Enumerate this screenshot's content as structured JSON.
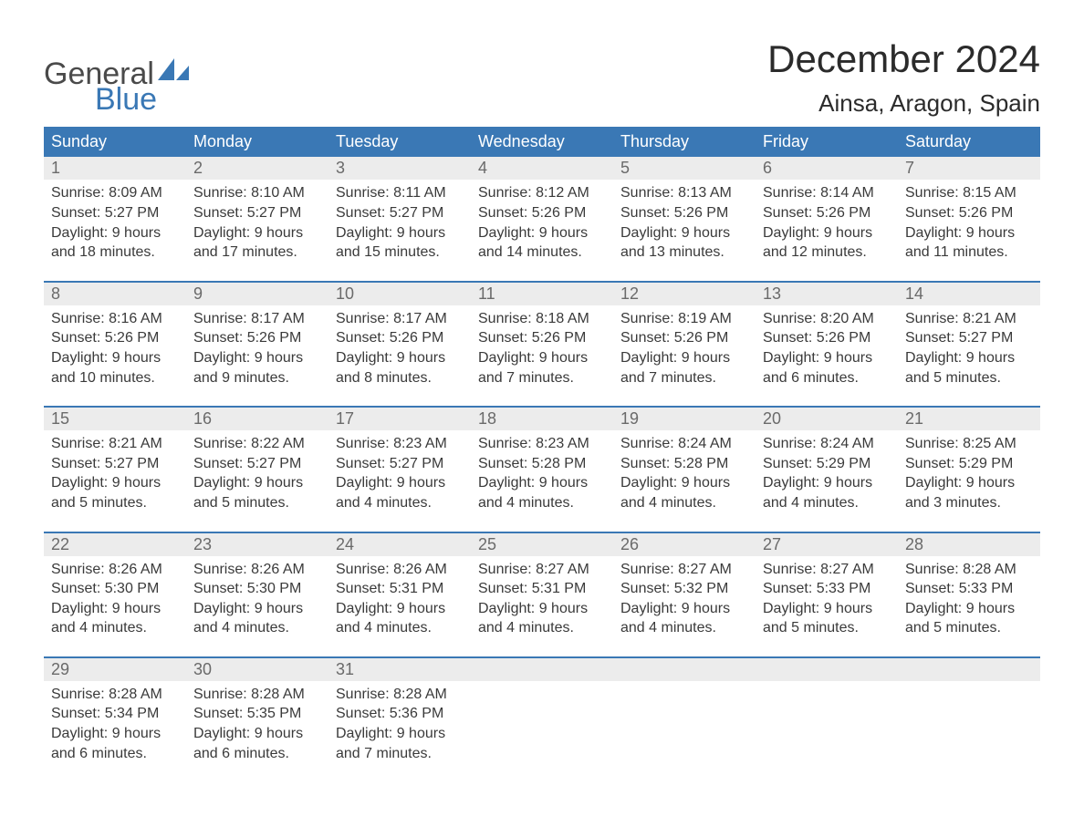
{
  "brand": {
    "word1": "General",
    "word2": "Blue",
    "text_color_word1": "#4a4a4a",
    "text_color_word2": "#3a78b5",
    "icon_color": "#3a78b5"
  },
  "header": {
    "month_title": "December 2024",
    "location": "Ainsa, Aragon, Spain"
  },
  "colors": {
    "header_bg": "#3a78b5",
    "header_text": "#ffffff",
    "daynum_bg": "#ececec",
    "daynum_text": "#6a6a6a",
    "body_text": "#3a3a3a",
    "week_border": "#3a78b5",
    "page_bg": "#ffffff"
  },
  "typography": {
    "month_title_fontsize": 42,
    "location_fontsize": 26,
    "weekday_fontsize": 18,
    "daynum_fontsize": 18,
    "body_fontsize": 16
  },
  "weekdays": [
    "Sunday",
    "Monday",
    "Tuesday",
    "Wednesday",
    "Thursday",
    "Friday",
    "Saturday"
  ],
  "weeks": [
    [
      {
        "num": "1",
        "sunrise": "Sunrise: 8:09 AM",
        "sunset": "Sunset: 5:27 PM",
        "daylight1": "Daylight: 9 hours",
        "daylight2": "and 18 minutes."
      },
      {
        "num": "2",
        "sunrise": "Sunrise: 8:10 AM",
        "sunset": "Sunset: 5:27 PM",
        "daylight1": "Daylight: 9 hours",
        "daylight2": "and 17 minutes."
      },
      {
        "num": "3",
        "sunrise": "Sunrise: 8:11 AM",
        "sunset": "Sunset: 5:27 PM",
        "daylight1": "Daylight: 9 hours",
        "daylight2": "and 15 minutes."
      },
      {
        "num": "4",
        "sunrise": "Sunrise: 8:12 AM",
        "sunset": "Sunset: 5:26 PM",
        "daylight1": "Daylight: 9 hours",
        "daylight2": "and 14 minutes."
      },
      {
        "num": "5",
        "sunrise": "Sunrise: 8:13 AM",
        "sunset": "Sunset: 5:26 PM",
        "daylight1": "Daylight: 9 hours",
        "daylight2": "and 13 minutes."
      },
      {
        "num": "6",
        "sunrise": "Sunrise: 8:14 AM",
        "sunset": "Sunset: 5:26 PM",
        "daylight1": "Daylight: 9 hours",
        "daylight2": "and 12 minutes."
      },
      {
        "num": "7",
        "sunrise": "Sunrise: 8:15 AM",
        "sunset": "Sunset: 5:26 PM",
        "daylight1": "Daylight: 9 hours",
        "daylight2": "and 11 minutes."
      }
    ],
    [
      {
        "num": "8",
        "sunrise": "Sunrise: 8:16 AM",
        "sunset": "Sunset: 5:26 PM",
        "daylight1": "Daylight: 9 hours",
        "daylight2": "and 10 minutes."
      },
      {
        "num": "9",
        "sunrise": "Sunrise: 8:17 AM",
        "sunset": "Sunset: 5:26 PM",
        "daylight1": "Daylight: 9 hours",
        "daylight2": "and 9 minutes."
      },
      {
        "num": "10",
        "sunrise": "Sunrise: 8:17 AM",
        "sunset": "Sunset: 5:26 PM",
        "daylight1": "Daylight: 9 hours",
        "daylight2": "and 8 minutes."
      },
      {
        "num": "11",
        "sunrise": "Sunrise: 8:18 AM",
        "sunset": "Sunset: 5:26 PM",
        "daylight1": "Daylight: 9 hours",
        "daylight2": "and 7 minutes."
      },
      {
        "num": "12",
        "sunrise": "Sunrise: 8:19 AM",
        "sunset": "Sunset: 5:26 PM",
        "daylight1": "Daylight: 9 hours",
        "daylight2": "and 7 minutes."
      },
      {
        "num": "13",
        "sunrise": "Sunrise: 8:20 AM",
        "sunset": "Sunset: 5:26 PM",
        "daylight1": "Daylight: 9 hours",
        "daylight2": "and 6 minutes."
      },
      {
        "num": "14",
        "sunrise": "Sunrise: 8:21 AM",
        "sunset": "Sunset: 5:27 PM",
        "daylight1": "Daylight: 9 hours",
        "daylight2": "and 5 minutes."
      }
    ],
    [
      {
        "num": "15",
        "sunrise": "Sunrise: 8:21 AM",
        "sunset": "Sunset: 5:27 PM",
        "daylight1": "Daylight: 9 hours",
        "daylight2": "and 5 minutes."
      },
      {
        "num": "16",
        "sunrise": "Sunrise: 8:22 AM",
        "sunset": "Sunset: 5:27 PM",
        "daylight1": "Daylight: 9 hours",
        "daylight2": "and 5 minutes."
      },
      {
        "num": "17",
        "sunrise": "Sunrise: 8:23 AM",
        "sunset": "Sunset: 5:27 PM",
        "daylight1": "Daylight: 9 hours",
        "daylight2": "and 4 minutes."
      },
      {
        "num": "18",
        "sunrise": "Sunrise: 8:23 AM",
        "sunset": "Sunset: 5:28 PM",
        "daylight1": "Daylight: 9 hours",
        "daylight2": "and 4 minutes."
      },
      {
        "num": "19",
        "sunrise": "Sunrise: 8:24 AM",
        "sunset": "Sunset: 5:28 PM",
        "daylight1": "Daylight: 9 hours",
        "daylight2": "and 4 minutes."
      },
      {
        "num": "20",
        "sunrise": "Sunrise: 8:24 AM",
        "sunset": "Sunset: 5:29 PM",
        "daylight1": "Daylight: 9 hours",
        "daylight2": "and 4 minutes."
      },
      {
        "num": "21",
        "sunrise": "Sunrise: 8:25 AM",
        "sunset": "Sunset: 5:29 PM",
        "daylight1": "Daylight: 9 hours",
        "daylight2": "and 3 minutes."
      }
    ],
    [
      {
        "num": "22",
        "sunrise": "Sunrise: 8:26 AM",
        "sunset": "Sunset: 5:30 PM",
        "daylight1": "Daylight: 9 hours",
        "daylight2": "and 4 minutes."
      },
      {
        "num": "23",
        "sunrise": "Sunrise: 8:26 AM",
        "sunset": "Sunset: 5:30 PM",
        "daylight1": "Daylight: 9 hours",
        "daylight2": "and 4 minutes."
      },
      {
        "num": "24",
        "sunrise": "Sunrise: 8:26 AM",
        "sunset": "Sunset: 5:31 PM",
        "daylight1": "Daylight: 9 hours",
        "daylight2": "and 4 minutes."
      },
      {
        "num": "25",
        "sunrise": "Sunrise: 8:27 AM",
        "sunset": "Sunset: 5:31 PM",
        "daylight1": "Daylight: 9 hours",
        "daylight2": "and 4 minutes."
      },
      {
        "num": "26",
        "sunrise": "Sunrise: 8:27 AM",
        "sunset": "Sunset: 5:32 PM",
        "daylight1": "Daylight: 9 hours",
        "daylight2": "and 4 minutes."
      },
      {
        "num": "27",
        "sunrise": "Sunrise: 8:27 AM",
        "sunset": "Sunset: 5:33 PM",
        "daylight1": "Daylight: 9 hours",
        "daylight2": "and 5 minutes."
      },
      {
        "num": "28",
        "sunrise": "Sunrise: 8:28 AM",
        "sunset": "Sunset: 5:33 PM",
        "daylight1": "Daylight: 9 hours",
        "daylight2": "and 5 minutes."
      }
    ],
    [
      {
        "num": "29",
        "sunrise": "Sunrise: 8:28 AM",
        "sunset": "Sunset: 5:34 PM",
        "daylight1": "Daylight: 9 hours",
        "daylight2": "and 6 minutes."
      },
      {
        "num": "30",
        "sunrise": "Sunrise: 8:28 AM",
        "sunset": "Sunset: 5:35 PM",
        "daylight1": "Daylight: 9 hours",
        "daylight2": "and 6 minutes."
      },
      {
        "num": "31",
        "sunrise": "Sunrise: 8:28 AM",
        "sunset": "Sunset: 5:36 PM",
        "daylight1": "Daylight: 9 hours",
        "daylight2": "and 7 minutes."
      },
      {
        "num": "",
        "sunrise": "",
        "sunset": "",
        "daylight1": "",
        "daylight2": ""
      },
      {
        "num": "",
        "sunrise": "",
        "sunset": "",
        "daylight1": "",
        "daylight2": ""
      },
      {
        "num": "",
        "sunrise": "",
        "sunset": "",
        "daylight1": "",
        "daylight2": ""
      },
      {
        "num": "",
        "sunrise": "",
        "sunset": "",
        "daylight1": "",
        "daylight2": ""
      }
    ]
  ]
}
